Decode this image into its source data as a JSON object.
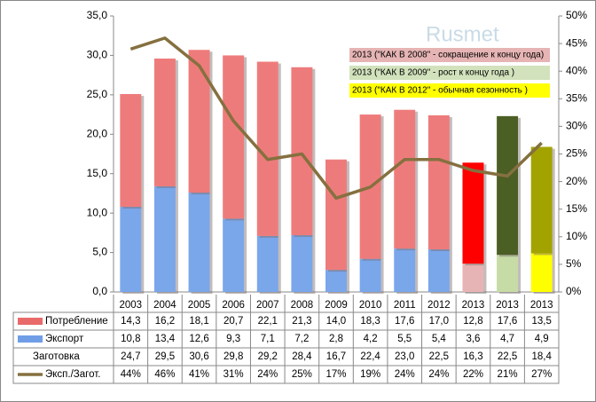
{
  "chart_data": {
    "type": "bar",
    "annotations": [
      "Rusmet",
      "2013 (\"КАК В 2008\" - сокращение к концу года)",
      "2013 (\"КАК В 2009\" - рост к концу года            )",
      "2013 (\"КАК В 2012\" - обычная сезонность        )"
    ],
    "annotation_colors": [
      null,
      "#e6b4b4",
      "#d2e2bc",
      "#ffff00"
    ],
    "categories": [
      "2003",
      "2004",
      "2005",
      "2006",
      "2007",
      "2008",
      "2009",
      "2010",
      "2011",
      "2012",
      "2013",
      "2013",
      "2013"
    ],
    "series": [
      {
        "name": "Потребление",
        "color": "#e86a6a",
        "colors": [
          "#ee7b7b",
          "#ee7b7b",
          "#ee7b7b",
          "#ee7b7b",
          "#ee7b7b",
          "#ee7b7b",
          "#ee7b7b",
          "#ee7b7b",
          "#ee7b7b",
          "#ee7b7b",
          "#ff0000",
          "#4b5e24",
          "#a3a300"
        ],
        "values": [
          14.3,
          16.2,
          18.1,
          20.7,
          22.1,
          21.3,
          14.0,
          18.3,
          17.6,
          17.0,
          12.8,
          17.6,
          13.5
        ],
        "value_labels": [
          "14,3",
          "16,2",
          "18,1",
          "20,7",
          "22,1",
          "21,3",
          "14,0",
          "18,3",
          "17,6",
          "17,0",
          "12,8",
          "17,6",
          "13,5"
        ]
      },
      {
        "name": "Экспорт",
        "color": "#6f9ee6",
        "colors": [
          "#7aa6ea",
          "#7aa6ea",
          "#7aa6ea",
          "#7aa6ea",
          "#7aa6ea",
          "#7aa6ea",
          "#7aa6ea",
          "#7aa6ea",
          "#7aa6ea",
          "#7aa6ea",
          "#e6b4b4",
          "#c6dba6",
          "#ffff00"
        ],
        "values": [
          10.8,
          13.4,
          12.6,
          9.3,
          7.1,
          7.2,
          2.8,
          4.2,
          5.5,
          5.4,
          3.6,
          4.7,
          4.9
        ],
        "value_labels": [
          "10,8",
          "13,4",
          "12,6",
          "9,3",
          "7,1",
          "7,2",
          "2,8",
          "4,2",
          "5,5",
          "5,4",
          "3,6",
          "4,7",
          "4,9"
        ]
      },
      {
        "name": "Заготовка",
        "values": [
          24.7,
          29.5,
          30.6,
          29.8,
          29.2,
          28.4,
          16.7,
          22.4,
          23.0,
          22.5,
          16.3,
          22.5,
          18.4
        ],
        "value_labels": [
          "24,7",
          "29,5",
          "30,6",
          "29,8",
          "29,2",
          "28,4",
          "16,7",
          "22,4",
          "23,0",
          "22,5",
          "16,3",
          "22,5",
          "18,4"
        ]
      },
      {
        "name": "Эксп./Загот.",
        "type": "line",
        "axis": "y2",
        "color": "#85703f",
        "values": [
          44,
          46,
          41,
          31,
          24,
          25,
          17,
          19,
          24,
          24,
          22,
          21,
          27
        ],
        "value_labels": [
          "44%",
          "46%",
          "41%",
          "31%",
          "24%",
          "25%",
          "17%",
          "19%",
          "24%",
          "24%",
          "22%",
          "21%",
          "27%"
        ]
      }
    ],
    "ylim": [
      0,
      35
    ],
    "yticks": [
      {
        "value": 0,
        "label": "0,0"
      },
      {
        "value": 5,
        "label": "5,0"
      },
      {
        "value": 10,
        "label": "10,0"
      },
      {
        "value": 15,
        "label": "15,0"
      },
      {
        "value": 20,
        "label": "20,0"
      },
      {
        "value": 25,
        "label": "25,0"
      },
      {
        "value": 30,
        "label": "30,0"
      },
      {
        "value": 35,
        "label": "35,0"
      }
    ],
    "y2lim": [
      0,
      50
    ],
    "y2ticks": [
      {
        "value": 0,
        "label": "0%"
      },
      {
        "value": 5,
        "label": "5%"
      },
      {
        "value": 10,
        "label": "10%"
      },
      {
        "value": 15,
        "label": "15%"
      },
      {
        "value": 20,
        "label": "20%"
      },
      {
        "value": 25,
        "label": "25%"
      },
      {
        "value": 30,
        "label": "30%"
      },
      {
        "value": 35,
        "label": "35%"
      },
      {
        "value": 40,
        "label": "40%"
      },
      {
        "value": 45,
        "label": "45%"
      },
      {
        "value": 50,
        "label": "50%"
      }
    ],
    "grid": false
  }
}
